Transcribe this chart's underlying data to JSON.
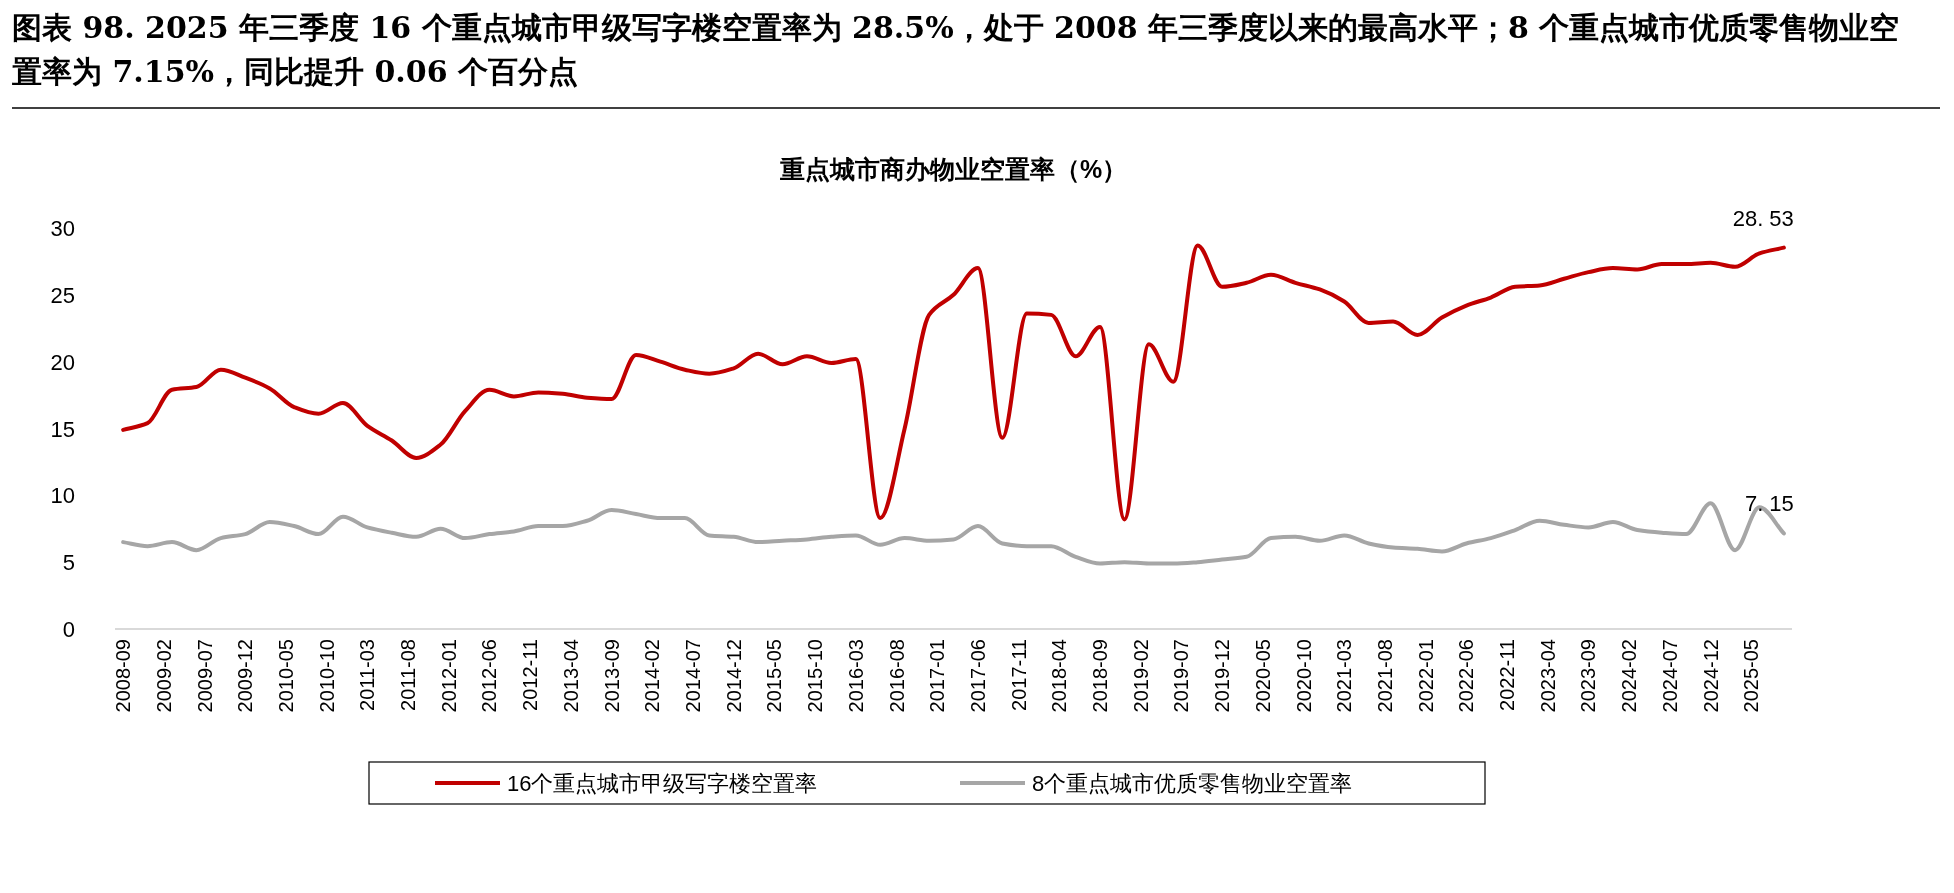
{
  "chart_data": {
    "type": "line",
    "title": "图表 98. 2025 年三季度 16 个重点城市甲级写字楼空置率为 28.5%，处于 2008 年三季度以来的最高水平；8 个重点城市优质零售物业空置率为 7.15%，同比提升 0.06 个百分点",
    "subtitle": "重点城市商办物业空置率（%）",
    "x": [
      "2008-09",
      "2008-12",
      "2009-03",
      "2009-06",
      "2009-09",
      "2009-12",
      "2010-03",
      "2010-06",
      "2010-09",
      "2010-12",
      "2011-03",
      "2011-06",
      "2011-09",
      "2011-12",
      "2012-03",
      "2012-06",
      "2012-09",
      "2012-12",
      "2013-03",
      "2013-06",
      "2013-09",
      "2013-12",
      "2014-03",
      "2014-06",
      "2014-09",
      "2014-12",
      "2015-03",
      "2015-06",
      "2015-09",
      "2015-12",
      "2016-03",
      "2016-06",
      "2016-09",
      "2016-12",
      "2017-03",
      "2017-06",
      "2017-09",
      "2017-12",
      "2018-03",
      "2018-06",
      "2018-09",
      "2018-12",
      "2019-03",
      "2019-06",
      "2019-09",
      "2019-12",
      "2020-03",
      "2020-06",
      "2020-09",
      "2020-12",
      "2021-03",
      "2021-06",
      "2021-09",
      "2021-12",
      "2022-03",
      "2022-06",
      "2022-09",
      "2022-12",
      "2023-03",
      "2023-06",
      "2023-09",
      "2023-12",
      "2024-03",
      "2024-06",
      "2024-09",
      "2024-12",
      "2025-03",
      "2025-06",
      "2025-09"
    ],
    "series": [
      {
        "name": "16个重点城市甲级写字楼空置率",
        "color": "#c00000",
        "values": [
          14.9,
          15.4,
          17.9,
          18.1,
          19.4,
          18.8,
          18.0,
          16.6,
          16.1,
          16.9,
          15.2,
          14.1,
          12.8,
          13.8,
          16.3,
          17.9,
          17.4,
          17.7,
          17.6,
          17.3,
          17.2,
          20.5,
          20.0,
          19.4,
          19.1,
          19.5,
          20.6,
          19.8,
          20.4,
          19.9,
          20.2,
          8.3,
          15.0,
          23.5,
          25.0,
          27.0,
          14.3,
          23.6,
          23.5,
          20.4,
          22.6,
          8.2,
          21.3,
          18.5,
          28.7,
          25.6,
          25.9,
          26.5,
          25.9,
          25.4,
          24.5,
          22.9,
          23.0,
          22.0,
          23.3,
          24.2,
          24.8,
          25.6,
          25.7,
          26.2,
          26.7,
          27.0,
          26.9,
          27.3,
          27.3,
          27.4,
          27.1,
          28.1,
          28.53
        ]
      },
      {
        "name": "8个重点城市优质零售物业空置率",
        "color": "#a6a6a6",
        "values": [
          6.5,
          6.2,
          6.5,
          5.9,
          6.8,
          7.1,
          8.0,
          7.7,
          7.1,
          8.4,
          7.6,
          7.2,
          6.9,
          7.5,
          6.8,
          7.1,
          7.3,
          7.7,
          7.7,
          8.1,
          8.9,
          8.6,
          8.3,
          8.3,
          7.0,
          6.9,
          6.5,
          6.6,
          6.7,
          6.9,
          7.0,
          6.3,
          6.8,
          6.6,
          6.7,
          7.7,
          6.4,
          6.2,
          6.2,
          5.4,
          4.9,
          5.0,
          4.9,
          4.9,
          5.0,
          5.2,
          5.4,
          6.8,
          6.9,
          6.6,
          7.0,
          6.4,
          6.1,
          6.0,
          5.8,
          6.4,
          6.8,
          7.4,
          8.1,
          7.8,
          7.6,
          8.0,
          7.4,
          7.2,
          7.1,
          9.4,
          5.9,
          9.1,
          7.15
        ]
      }
    ],
    "annotations": [
      {
        "text": "28. 53",
        "x": "2025-09",
        "y": 28.53
      },
      {
        "text": "7. 15",
        "x": "2025-09",
        "y": 7.15
      }
    ],
    "xlim": [
      "2008-08",
      "2025-10"
    ],
    "xticks": [
      "2008-09",
      "2009-02",
      "2009-07",
      "2009-12",
      "2010-05",
      "2010-10",
      "2011-03",
      "2011-08",
      "2012-01",
      "2012-06",
      "2012-11",
      "2013-04",
      "2013-09",
      "2014-02",
      "2014-07",
      "2014-12",
      "2015-05",
      "2015-10",
      "2016-03",
      "2016-08",
      "2017-01",
      "2017-06",
      "2017-11",
      "2018-04",
      "2018-09",
      "2019-02",
      "2019-07",
      "2019-12",
      "2020-05",
      "2020-10",
      "2021-03",
      "2021-08",
      "2022-01",
      "2022-06",
      "2022-11",
      "2023-04",
      "2023-09",
      "2024-02",
      "2024-07",
      "2024-12",
      "2025-05"
    ],
    "ylim": [
      0,
      30
    ],
    "yticks": [
      0,
      5,
      10,
      15,
      20,
      25,
      30
    ],
    "legend": "bottom",
    "marker": "none",
    "line_style": "solid"
  }
}
